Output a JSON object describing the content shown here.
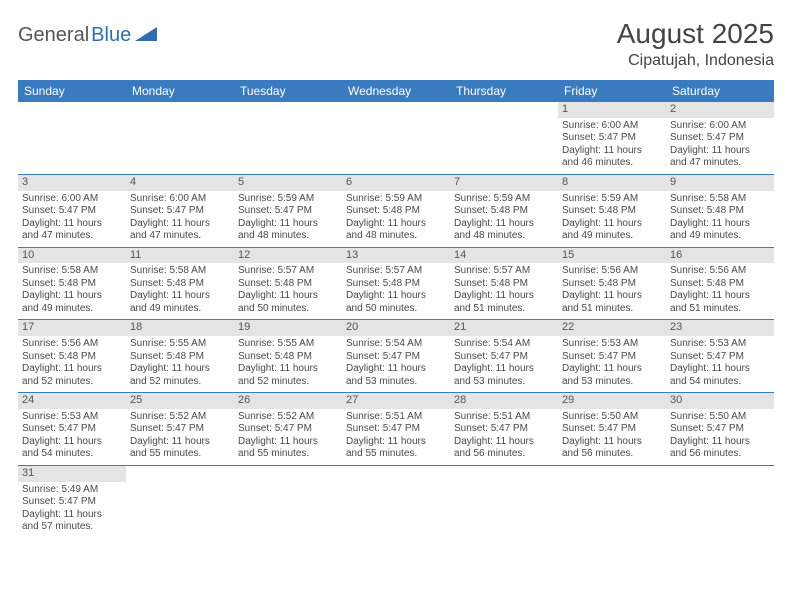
{
  "logo": {
    "text1": "General",
    "text2": "Blue",
    "tri_color": "#2f6fb0"
  },
  "title": "August 2025",
  "location": "Cipatujah, Indonesia",
  "colors": {
    "header_bg": "#3a7bbf",
    "header_text": "#ffffff",
    "daynum_bg": "#e4e4e4",
    "rule": "#3a7bbf",
    "body_text": "#4a4a4a"
  },
  "weekdays": [
    "Sunday",
    "Monday",
    "Tuesday",
    "Wednesday",
    "Thursday",
    "Friday",
    "Saturday"
  ],
  "weeks": [
    [
      null,
      null,
      null,
      null,
      null,
      {
        "n": "1",
        "sr": "Sunrise: 6:00 AM",
        "ss": "Sunset: 5:47 PM",
        "d1": "Daylight: 11 hours",
        "d2": "and 46 minutes."
      },
      {
        "n": "2",
        "sr": "Sunrise: 6:00 AM",
        "ss": "Sunset: 5:47 PM",
        "d1": "Daylight: 11 hours",
        "d2": "and 47 minutes."
      }
    ],
    [
      {
        "n": "3",
        "sr": "Sunrise: 6:00 AM",
        "ss": "Sunset: 5:47 PM",
        "d1": "Daylight: 11 hours",
        "d2": "and 47 minutes."
      },
      {
        "n": "4",
        "sr": "Sunrise: 6:00 AM",
        "ss": "Sunset: 5:47 PM",
        "d1": "Daylight: 11 hours",
        "d2": "and 47 minutes."
      },
      {
        "n": "5",
        "sr": "Sunrise: 5:59 AM",
        "ss": "Sunset: 5:47 PM",
        "d1": "Daylight: 11 hours",
        "d2": "and 48 minutes."
      },
      {
        "n": "6",
        "sr": "Sunrise: 5:59 AM",
        "ss": "Sunset: 5:48 PM",
        "d1": "Daylight: 11 hours",
        "d2": "and 48 minutes."
      },
      {
        "n": "7",
        "sr": "Sunrise: 5:59 AM",
        "ss": "Sunset: 5:48 PM",
        "d1": "Daylight: 11 hours",
        "d2": "and 48 minutes."
      },
      {
        "n": "8",
        "sr": "Sunrise: 5:59 AM",
        "ss": "Sunset: 5:48 PM",
        "d1": "Daylight: 11 hours",
        "d2": "and 49 minutes."
      },
      {
        "n": "9",
        "sr": "Sunrise: 5:58 AM",
        "ss": "Sunset: 5:48 PM",
        "d1": "Daylight: 11 hours",
        "d2": "and 49 minutes."
      }
    ],
    [
      {
        "n": "10",
        "sr": "Sunrise: 5:58 AM",
        "ss": "Sunset: 5:48 PM",
        "d1": "Daylight: 11 hours",
        "d2": "and 49 minutes."
      },
      {
        "n": "11",
        "sr": "Sunrise: 5:58 AM",
        "ss": "Sunset: 5:48 PM",
        "d1": "Daylight: 11 hours",
        "d2": "and 49 minutes."
      },
      {
        "n": "12",
        "sr": "Sunrise: 5:57 AM",
        "ss": "Sunset: 5:48 PM",
        "d1": "Daylight: 11 hours",
        "d2": "and 50 minutes."
      },
      {
        "n": "13",
        "sr": "Sunrise: 5:57 AM",
        "ss": "Sunset: 5:48 PM",
        "d1": "Daylight: 11 hours",
        "d2": "and 50 minutes."
      },
      {
        "n": "14",
        "sr": "Sunrise: 5:57 AM",
        "ss": "Sunset: 5:48 PM",
        "d1": "Daylight: 11 hours",
        "d2": "and 51 minutes."
      },
      {
        "n": "15",
        "sr": "Sunrise: 5:56 AM",
        "ss": "Sunset: 5:48 PM",
        "d1": "Daylight: 11 hours",
        "d2": "and 51 minutes."
      },
      {
        "n": "16",
        "sr": "Sunrise: 5:56 AM",
        "ss": "Sunset: 5:48 PM",
        "d1": "Daylight: 11 hours",
        "d2": "and 51 minutes."
      }
    ],
    [
      {
        "n": "17",
        "sr": "Sunrise: 5:56 AM",
        "ss": "Sunset: 5:48 PM",
        "d1": "Daylight: 11 hours",
        "d2": "and 52 minutes."
      },
      {
        "n": "18",
        "sr": "Sunrise: 5:55 AM",
        "ss": "Sunset: 5:48 PM",
        "d1": "Daylight: 11 hours",
        "d2": "and 52 minutes."
      },
      {
        "n": "19",
        "sr": "Sunrise: 5:55 AM",
        "ss": "Sunset: 5:48 PM",
        "d1": "Daylight: 11 hours",
        "d2": "and 52 minutes."
      },
      {
        "n": "20",
        "sr": "Sunrise: 5:54 AM",
        "ss": "Sunset: 5:47 PM",
        "d1": "Daylight: 11 hours",
        "d2": "and 53 minutes."
      },
      {
        "n": "21",
        "sr": "Sunrise: 5:54 AM",
        "ss": "Sunset: 5:47 PM",
        "d1": "Daylight: 11 hours",
        "d2": "and 53 minutes."
      },
      {
        "n": "22",
        "sr": "Sunrise: 5:53 AM",
        "ss": "Sunset: 5:47 PM",
        "d1": "Daylight: 11 hours",
        "d2": "and 53 minutes."
      },
      {
        "n": "23",
        "sr": "Sunrise: 5:53 AM",
        "ss": "Sunset: 5:47 PM",
        "d1": "Daylight: 11 hours",
        "d2": "and 54 minutes."
      }
    ],
    [
      {
        "n": "24",
        "sr": "Sunrise: 5:53 AM",
        "ss": "Sunset: 5:47 PM",
        "d1": "Daylight: 11 hours",
        "d2": "and 54 minutes."
      },
      {
        "n": "25",
        "sr": "Sunrise: 5:52 AM",
        "ss": "Sunset: 5:47 PM",
        "d1": "Daylight: 11 hours",
        "d2": "and 55 minutes."
      },
      {
        "n": "26",
        "sr": "Sunrise: 5:52 AM",
        "ss": "Sunset: 5:47 PM",
        "d1": "Daylight: 11 hours",
        "d2": "and 55 minutes."
      },
      {
        "n": "27",
        "sr": "Sunrise: 5:51 AM",
        "ss": "Sunset: 5:47 PM",
        "d1": "Daylight: 11 hours",
        "d2": "and 55 minutes."
      },
      {
        "n": "28",
        "sr": "Sunrise: 5:51 AM",
        "ss": "Sunset: 5:47 PM",
        "d1": "Daylight: 11 hours",
        "d2": "and 56 minutes."
      },
      {
        "n": "29",
        "sr": "Sunrise: 5:50 AM",
        "ss": "Sunset: 5:47 PM",
        "d1": "Daylight: 11 hours",
        "d2": "and 56 minutes."
      },
      {
        "n": "30",
        "sr": "Sunrise: 5:50 AM",
        "ss": "Sunset: 5:47 PM",
        "d1": "Daylight: 11 hours",
        "d2": "and 56 minutes."
      }
    ],
    [
      {
        "n": "31",
        "sr": "Sunrise: 5:49 AM",
        "ss": "Sunset: 5:47 PM",
        "d1": "Daylight: 11 hours",
        "d2": "and 57 minutes."
      },
      null,
      null,
      null,
      null,
      null,
      null
    ]
  ]
}
